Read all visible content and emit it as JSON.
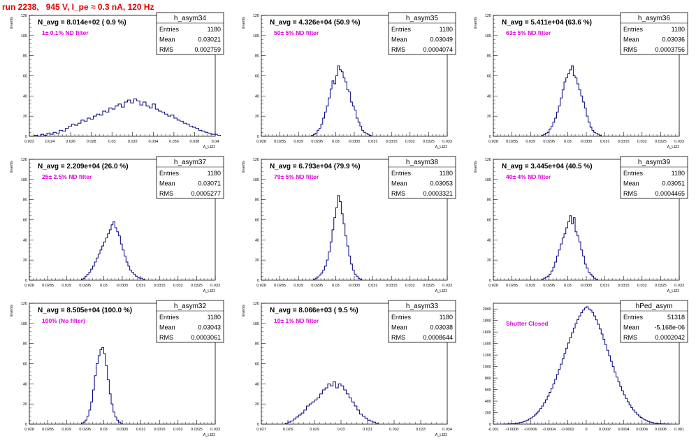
{
  "run_title": "run 2238,   945 V, I_pe ≈ 0.3 nA, 120 Hz",
  "colors": {
    "hist": "#00007f",
    "annotation": "#e000e0",
    "title": "#e00000"
  },
  "chart_data": [
    {
      "type": "bar",
      "name": "h_asym34",
      "avg": "N_avg = 8.014e+02 ( 0.9 %)",
      "filter": "1± 0.1% ND filter",
      "entries": "1180",
      "mean": "0.03021",
      "rms": "0.002759",
      "xlim": [
        0.022,
        0.04
      ],
      "ylim": [
        0,
        120
      ],
      "xticks": [
        "0.022",
        "0.024",
        "0.026",
        "0.028",
        "0.03",
        "0.032",
        "0.034",
        "0.036",
        "0.038",
        "0.04"
      ],
      "yticks": [
        "0",
        "20",
        "40",
        "60",
        "80",
        "100",
        "120"
      ],
      "xlabel": "A_LED",
      "ylabel": "Events",
      "x_start": 0.0225,
      "bin_width": 0.0003,
      "values": [
        1,
        0,
        2,
        1,
        3,
        2,
        4,
        3,
        6,
        5,
        8,
        10,
        12,
        11,
        13,
        16,
        15,
        18,
        17,
        20,
        22,
        21,
        25,
        24,
        28,
        27,
        30,
        32,
        29,
        34,
        36,
        33,
        37,
        35,
        31,
        34,
        30,
        28,
        32,
        27,
        25,
        24,
        22,
        20,
        21,
        18,
        16,
        15,
        13,
        12,
        10,
        9,
        8,
        6,
        5,
        4,
        3,
        2,
        2,
        1
      ]
    },
    {
      "type": "bar",
      "name": "h_asym35",
      "avg": "N_avg = 4.326e+04 (50.9 %)",
      "filter": "50± 5% ND filter",
      "entries": "1180",
      "mean": "0.03049",
      "rms": "0.0004074",
      "xlim": [
        0.028,
        0.033
      ],
      "ylim": [
        0,
        120
      ],
      "xticks": [
        "0.028",
        "0.0285",
        "0.029",
        "0.0295",
        "0.03",
        "0.0305",
        "0.031",
        "0.0315",
        "0.032",
        "0.0325",
        "0.033"
      ],
      "yticks": [
        "0",
        "20",
        "40",
        "60",
        "80",
        "100",
        "120"
      ],
      "xlabel": "A_LED",
      "ylabel": "Events",
      "x_start": 0.02935,
      "bin_width": 5e-05,
      "values": [
        1,
        2,
        3,
        6,
        8,
        12,
        18,
        24,
        30,
        38,
        47,
        55,
        52,
        60,
        70,
        66,
        64,
        58,
        54,
        46,
        44,
        34,
        30,
        26,
        18,
        14,
        10,
        6,
        4,
        3,
        2,
        1
      ]
    },
    {
      "type": "bar",
      "name": "h_asym36",
      "avg": "N_avg = 5.411e+04 (63.6 %)",
      "filter": "63± 5% ND filter",
      "entries": "1180",
      "mean": "0.03036",
      "rms": "0.0003756",
      "xlim": [
        0.028,
        0.033
      ],
      "ylim": [
        0,
        120
      ],
      "xticks": [
        "0.028",
        "0.0285",
        "0.029",
        "0.0295",
        "0.03",
        "0.0305",
        "0.031",
        "0.0315",
        "0.032",
        "0.0325",
        "0.033"
      ],
      "yticks": [
        "0",
        "20",
        "40",
        "60",
        "80",
        "100",
        "120"
      ],
      "xlabel": "A_LED",
      "ylabel": "Events",
      "x_start": 0.0293,
      "bin_width": 5e-05,
      "values": [
        1,
        2,
        3,
        4,
        7,
        10,
        14,
        18,
        24,
        30,
        38,
        46,
        54,
        58,
        62,
        66,
        70,
        60,
        58,
        52,
        46,
        40,
        34,
        28,
        20,
        14,
        9,
        6,
        4,
        3,
        2,
        1
      ]
    },
    {
      "type": "bar",
      "name": "h_asym37",
      "avg": "N_avg = 2.209e+04 (26.0 %)",
      "filter": "25± 2.5% ND filter",
      "entries": "1180",
      "mean": "0.03071",
      "rms": "0.0005277",
      "xlim": [
        0.028,
        0.033
      ],
      "ylim": [
        0,
        120
      ],
      "xticks": [
        "0.028",
        "0.0285",
        "0.029",
        "0.0295",
        "0.03",
        "0.0305",
        "0.031",
        "0.0315",
        "0.032",
        "0.0325",
        "0.033"
      ],
      "yticks": [
        "0",
        "20",
        "40",
        "60",
        "80",
        "100",
        "120"
      ],
      "xlabel": "A_LED",
      "ylabel": "Events",
      "x_start": 0.0294,
      "bin_width": 5e-05,
      "values": [
        1,
        2,
        4,
        6,
        8,
        11,
        14,
        18,
        22,
        26,
        30,
        34,
        38,
        42,
        46,
        50,
        55,
        58,
        52,
        48,
        44,
        36,
        30,
        24,
        18,
        14,
        10,
        8,
        6,
        4,
        3,
        2,
        2,
        1
      ]
    },
    {
      "type": "bar",
      "name": "h_asym38",
      "avg": "N_avg = 6.793e+04 (79.9 %)",
      "filter": "79± 5% ND filter",
      "entries": "1180",
      "mean": "0.03053",
      "rms": "0.0003321",
      "xlim": [
        0.028,
        0.033
      ],
      "ylim": [
        0,
        120
      ],
      "xticks": [
        "0.028",
        "0.0285",
        "0.029",
        "0.0295",
        "0.03",
        "0.0305",
        "0.031",
        "0.0315",
        "0.032",
        "0.0325",
        "0.033"
      ],
      "yticks": [
        "0",
        "20",
        "40",
        "60",
        "80",
        "100",
        "120"
      ],
      "xlabel": "A_LED",
      "ylabel": "Events",
      "x_start": 0.0294,
      "bin_width": 5e-05,
      "values": [
        1,
        2,
        3,
        5,
        7,
        10,
        14,
        20,
        28,
        38,
        50,
        62,
        72,
        84,
        78,
        66,
        56,
        44,
        34,
        24,
        16,
        10,
        6,
        4,
        2,
        1
      ]
    },
    {
      "type": "bar",
      "name": "h_asym39",
      "avg": "N_avg = 3.445e+04 (40.5 %)",
      "filter": "40± 4% ND filter",
      "entries": "1180",
      "mean": "0.03051",
      "rms": "0.0004465",
      "xlim": [
        0.028,
        0.033
      ],
      "ylim": [
        0,
        120
      ],
      "xticks": [
        "0.028",
        "0.0285",
        "0.029",
        "0.0295",
        "0.03",
        "0.0305",
        "0.031",
        "0.0315",
        "0.032",
        "0.0325",
        "0.033"
      ],
      "yticks": [
        "0",
        "20",
        "40",
        "60",
        "80",
        "100",
        "120"
      ],
      "xlabel": "A_LED",
      "ylabel": "Events",
      "x_start": 0.0293,
      "bin_width": 5e-05,
      "values": [
        1,
        2,
        3,
        4,
        6,
        9,
        13,
        18,
        24,
        30,
        36,
        42,
        46,
        52,
        58,
        64,
        56,
        62,
        48,
        44,
        38,
        30,
        24,
        16,
        12,
        8,
        6,
        4,
        2,
        1
      ]
    },
    {
      "type": "bar",
      "name": "h_asym32",
      "avg": "N_avg = 8.505e+04 (100.0 %)",
      "filter": "100% (No filter)",
      "entries": "1180",
      "mean": "0.03043",
      "rms": "0.0003061",
      "xlim": [
        0.028,
        0.033
      ],
      "ylim": [
        0,
        120
      ],
      "xticks": [
        "0.028",
        "0.0285",
        "0.029",
        "0.0295",
        "0.03",
        "0.0305",
        "0.031",
        "0.0315",
        "0.032",
        "0.0325",
        "0.033"
      ],
      "yticks": [
        "0",
        "20",
        "40",
        "60",
        "80",
        "100",
        "120"
      ],
      "xlabel": "A_LED",
      "ylabel": "Events",
      "x_start": 0.0294,
      "bin_width": 5e-05,
      "values": [
        1,
        2,
        4,
        8,
        14,
        22,
        34,
        48,
        60,
        68,
        74,
        76,
        70,
        58,
        44,
        30,
        20,
        12,
        7,
        4,
        2,
        1
      ]
    },
    {
      "type": "bar",
      "name": "h_asym33",
      "avg": "N_avg = 8.066e+03 ( 9.5 %)",
      "filter": "10± 1% ND filter",
      "entries": "1180",
      "mean": "0.03038",
      "rms": "0.0008644",
      "xlim": [
        0.027,
        0.034
      ],
      "ylim": [
        0,
        120
      ],
      "xticks": [
        "0.027",
        "0.028",
        "0.029",
        "0.03",
        "0.031",
        "0.032",
        "0.033",
        "0.034"
      ],
      "yticks": [
        "0",
        "20",
        "40",
        "60",
        "80",
        "100",
        "120"
      ],
      "xlabel": "A_LED",
      "ylabel": "Events",
      "x_start": 0.0279,
      "bin_width": 0.0001,
      "values": [
        1,
        2,
        3,
        5,
        7,
        9,
        11,
        14,
        18,
        20,
        22,
        24,
        26,
        30,
        34,
        36,
        40,
        38,
        42,
        36,
        40,
        38,
        34,
        30,
        26,
        22,
        18,
        14,
        10,
        8,
        6,
        4,
        3,
        2,
        1
      ]
    },
    {
      "type": "bar",
      "name": "hPed_asym",
      "avg": "",
      "filter": "Shutter Closed",
      "entries": "51318",
      "mean": "-5.168e-06",
      "rms": "0.0002042",
      "xlim": [
        -0.001,
        0.001
      ],
      "ylim": [
        0,
        2100
      ],
      "xticks": [
        "-0.001",
        "-0.0008",
        "-0.0006",
        "-0.0004",
        "-0.0002",
        "0",
        "0.0002",
        "0.0004",
        "0.0006",
        "0.0008",
        "0.001"
      ],
      "yticks": [
        "0",
        "200",
        "400",
        "600",
        "800",
        "1000",
        "1200",
        "1400",
        "1600",
        "1800",
        "2000"
      ],
      "xlabel": "",
      "ylabel": "",
      "x_start": -0.0009,
      "bin_width": 2e-05,
      "values": [
        1,
        2,
        3,
        4,
        6,
        8,
        11,
        15,
        20,
        26,
        34,
        44,
        56,
        70,
        88,
        108,
        132,
        160,
        192,
        228,
        270,
        316,
        368,
        424,
        486,
        552,
        624,
        700,
        780,
        864,
        952,
        1042,
        1134,
        1226,
        1318,
        1410,
        1500,
        1586,
        1668,
        1746,
        1816,
        1880,
        1936,
        1982,
        2018,
        2040,
        2000,
        1980,
        1940,
        1880,
        1812,
        1736,
        1654,
        1566,
        1474,
        1380,
        1284,
        1188,
        1092,
        998,
        906,
        818,
        734,
        654,
        580,
        510,
        446,
        388,
        334,
        286,
        244,
        206,
        172,
        142,
        116,
        94,
        76,
        60,
        46,
        36,
        28,
        20,
        15,
        11,
        8,
        6,
        4,
        3,
        2,
        1
      ]
    }
  ]
}
